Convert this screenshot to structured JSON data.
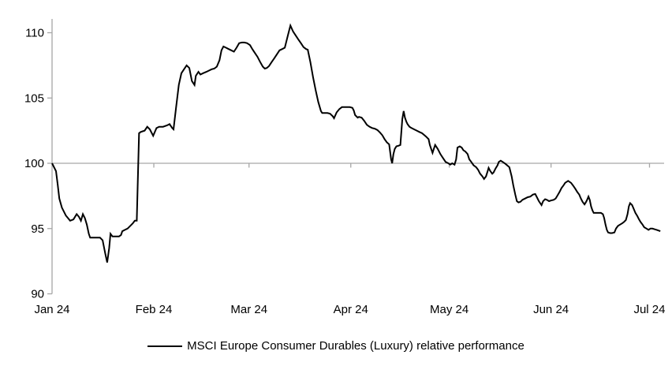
{
  "legend": {
    "label": "MSCI Europe Consumer Durables (Luxury) relative performance"
  },
  "chart_data": {
    "type": "line",
    "title": "",
    "xlabel": "",
    "ylabel": "",
    "grid": "none",
    "legend_position": "bottom",
    "axis_color": "#A6A6A6",
    "text_color": "#000000",
    "baseline_value": 100,
    "y_axis": {
      "ticks": [
        90,
        95,
        100,
        105,
        110
      ],
      "range": [
        90,
        110
      ]
    },
    "x_axis": {
      "tick_labels": [
        "Jan 24",
        "Feb 24",
        "Mar 24",
        "Apr 24",
        "May 24",
        "Jun 24",
        "Jul 24"
      ],
      "tick_positions_days": [
        0,
        31,
        60,
        91,
        121,
        152,
        182
      ],
      "domain_days": [
        0,
        186.4
      ],
      "unit": "days since Jan 1, 2024"
    },
    "series": [
      {
        "name": "MSCI Europe Consumer Durables (Luxury) relative performance",
        "color": "#000000",
        "points": [
          [
            0,
            100
          ],
          [
            1.2,
            99.4
          ],
          [
            1.7,
            98.4
          ],
          [
            2.2,
            97.3
          ],
          [
            3,
            96.6
          ],
          [
            4.2,
            96
          ],
          [
            5.5,
            95.6
          ],
          [
            6.5,
            95.7
          ],
          [
            7.5,
            96.1
          ],
          [
            8.2,
            95.9
          ],
          [
            8.8,
            95.6
          ],
          [
            9.4,
            96.1
          ],
          [
            10,
            95.8
          ],
          [
            10.6,
            95.3
          ],
          [
            11.2,
            94.6
          ],
          [
            11.6,
            94.3
          ],
          [
            13.6,
            94.3
          ],
          [
            14.6,
            94.3
          ],
          [
            15.4,
            94.1
          ],
          [
            16.2,
            93.1
          ],
          [
            16.8,
            92.4
          ],
          [
            17.4,
            93.5
          ],
          [
            17.8,
            94.6
          ],
          [
            18.4,
            94.4
          ],
          [
            19.4,
            94.4
          ],
          [
            20.4,
            94.4
          ],
          [
            21,
            94.5
          ],
          [
            21.4,
            94.8
          ],
          [
            22.2,
            94.9
          ],
          [
            23,
            95
          ],
          [
            23.8,
            95.2
          ],
          [
            24.6,
            95.4
          ],
          [
            25.2,
            95.6
          ],
          [
            25.8,
            95.6
          ],
          [
            26.5,
            102.3
          ],
          [
            27,
            102.4
          ],
          [
            28.2,
            102.5
          ],
          [
            29,
            102.8
          ],
          [
            29.8,
            102.6
          ],
          [
            30.8,
            102.1
          ],
          [
            31.8,
            102.7
          ],
          [
            32.6,
            102.8
          ],
          [
            33.8,
            102.8
          ],
          [
            35,
            102.9
          ],
          [
            35.8,
            103
          ],
          [
            36.6,
            102.7
          ],
          [
            37,
            102.6
          ],
          [
            37.8,
            104.3
          ],
          [
            38.6,
            106
          ],
          [
            39.4,
            106.9
          ],
          [
            40.2,
            107.2
          ],
          [
            41,
            107.5
          ],
          [
            41.8,
            107.3
          ],
          [
            42.6,
            106.3
          ],
          [
            43.4,
            106
          ],
          [
            43.8,
            106.7
          ],
          [
            44.6,
            107
          ],
          [
            45.2,
            106.8
          ],
          [
            46,
            106.9
          ],
          [
            47,
            107
          ],
          [
            47.8,
            107.1
          ],
          [
            48.6,
            107.2
          ],
          [
            49.4,
            107.25
          ],
          [
            50.2,
            107.4
          ],
          [
            51,
            107.9
          ],
          [
            51.6,
            108.65
          ],
          [
            52.2,
            108.95
          ],
          [
            53,
            108.85
          ],
          [
            53.8,
            108.75
          ],
          [
            54.6,
            108.65
          ],
          [
            55.4,
            108.55
          ],
          [
            56.2,
            108.85
          ],
          [
            57,
            109.2
          ],
          [
            57.8,
            109.25
          ],
          [
            58.6,
            109.25
          ],
          [
            59.4,
            109.2
          ],
          [
            60.3,
            109.05
          ],
          [
            61,
            108.75
          ],
          [
            61.8,
            108.45
          ],
          [
            62.6,
            108.15
          ],
          [
            63.4,
            107.75
          ],
          [
            64.2,
            107.4
          ],
          [
            64.8,
            107.25
          ],
          [
            65.4,
            107.3
          ],
          [
            66.1,
            107.45
          ],
          [
            66.9,
            107.75
          ],
          [
            67.7,
            108.05
          ],
          [
            68.5,
            108.35
          ],
          [
            69.3,
            108.65
          ],
          [
            70.1,
            108.75
          ],
          [
            70.9,
            108.85
          ],
          [
            71.8,
            109.75
          ],
          [
            72.6,
            110.55
          ],
          [
            73.4,
            110.1
          ],
          [
            74.2,
            109.8
          ],
          [
            75,
            109.5
          ],
          [
            75.8,
            109.2
          ],
          [
            76.6,
            108.9
          ],
          [
            77.4,
            108.75
          ],
          [
            77.9,
            108.7
          ],
          [
            78.7,
            107.75
          ],
          [
            79.5,
            106.6
          ],
          [
            80.3,
            105.6
          ],
          [
            81.1,
            104.7
          ],
          [
            81.9,
            104
          ],
          [
            82.3,
            103.85
          ],
          [
            83.9,
            103.85
          ],
          [
            84.7,
            103.8
          ],
          [
            85.5,
            103.6
          ],
          [
            85.9,
            103.45
          ],
          [
            86.7,
            103.9
          ],
          [
            87.5,
            104.15
          ],
          [
            88.3,
            104.3
          ],
          [
            89.9,
            104.3
          ],
          [
            90.7,
            104.3
          ],
          [
            91.5,
            104.25
          ],
          [
            91.9,
            104.05
          ],
          [
            92.3,
            103.7
          ],
          [
            93.1,
            103.5
          ],
          [
            93.5,
            103.55
          ],
          [
            94.3,
            103.5
          ],
          [
            95.1,
            103.25
          ],
          [
            95.9,
            102.95
          ],
          [
            96.7,
            102.8
          ],
          [
            97.5,
            102.7
          ],
          [
            98.3,
            102.65
          ],
          [
            99.1,
            102.55
          ],
          [
            99.9,
            102.35
          ],
          [
            100.6,
            102.15
          ],
          [
            101.3,
            101.85
          ],
          [
            102,
            101.6
          ],
          [
            102.7,
            101.45
          ],
          [
            103.3,
            100.3
          ],
          [
            103.6,
            100
          ],
          [
            104,
            100.7
          ],
          [
            104.4,
            101.1
          ],
          [
            104.9,
            101.3
          ],
          [
            105.6,
            101.35
          ],
          [
            106.1,
            101.4
          ],
          [
            106.7,
            103.4
          ],
          [
            107.1,
            104
          ],
          [
            107.5,
            103.5
          ],
          [
            107.9,
            103.2
          ],
          [
            108.3,
            103
          ],
          [
            108.9,
            102.8
          ],
          [
            109.5,
            102.7
          ],
          [
            110.3,
            102.6
          ],
          [
            111.1,
            102.5
          ],
          [
            111.9,
            102.4
          ],
          [
            112.7,
            102.3
          ],
          [
            113.9,
            102.05
          ],
          [
            114.7,
            101.85
          ],
          [
            115.1,
            101.4
          ],
          [
            115.9,
            100.8
          ],
          [
            116.3,
            101.1
          ],
          [
            116.7,
            101.4
          ],
          [
            117.5,
            101.1
          ],
          [
            118.3,
            100.7
          ],
          [
            119.1,
            100.4
          ],
          [
            119.9,
            100.1
          ],
          [
            120.7,
            100
          ],
          [
            121.3,
            99.9
          ],
          [
            121.9,
            100
          ],
          [
            122.6,
            99.9
          ],
          [
            123.1,
            100.3
          ],
          [
            123.5,
            101.2
          ],
          [
            124.2,
            101.3
          ],
          [
            124.8,
            101.2
          ],
          [
            125.3,
            101
          ],
          [
            125.9,
            100.9
          ],
          [
            126.6,
            100.7
          ],
          [
            127.1,
            100.3
          ],
          [
            127.7,
            100.1
          ],
          [
            128.4,
            99.85
          ],
          [
            129.2,
            99.7
          ],
          [
            129.8,
            99.5
          ],
          [
            130.4,
            99.2
          ],
          [
            131.1,
            99
          ],
          [
            131.6,
            98.8
          ],
          [
            132.2,
            99
          ],
          [
            132.7,
            99.4
          ],
          [
            133,
            99.65
          ],
          [
            133.5,
            99.4
          ],
          [
            134.1,
            99.2
          ],
          [
            134.5,
            99.3
          ],
          [
            135.1,
            99.6
          ],
          [
            135.7,
            99.85
          ],
          [
            136.1,
            100.1
          ],
          [
            136.7,
            100.2
          ],
          [
            137.3,
            100.1
          ],
          [
            137.9,
            100
          ],
          [
            138.4,
            99.9
          ],
          [
            139.3,
            99.7
          ],
          [
            140,
            99
          ],
          [
            140.5,
            98.3
          ],
          [
            141.1,
            97.6
          ],
          [
            141.6,
            97.1
          ],
          [
            142.1,
            97
          ],
          [
            142.7,
            97.05
          ],
          [
            143.3,
            97.2
          ],
          [
            144.1,
            97.3
          ],
          [
            144.9,
            97.4
          ],
          [
            145.7,
            97.45
          ],
          [
            146.5,
            97.6
          ],
          [
            147.2,
            97.65
          ],
          [
            147.7,
            97.4
          ],
          [
            148.3,
            97.1
          ],
          [
            149.1,
            96.8
          ],
          [
            149.6,
            97.1
          ],
          [
            150.2,
            97.25
          ],
          [
            150.7,
            97.2
          ],
          [
            151.4,
            97.1
          ],
          [
            152,
            97.15
          ],
          [
            152.8,
            97.2
          ],
          [
            153.4,
            97.3
          ],
          [
            153.9,
            97.5
          ],
          [
            154.6,
            97.8
          ],
          [
            155.2,
            98.1
          ],
          [
            155.8,
            98.3
          ],
          [
            156.3,
            98.5
          ],
          [
            157.2,
            98.65
          ],
          [
            158.1,
            98.5
          ],
          [
            158.7,
            98.3
          ],
          [
            159.4,
            98.05
          ],
          [
            160,
            97.8
          ],
          [
            160.6,
            97.6
          ],
          [
            161.1,
            97.3
          ],
          [
            161.6,
            97.05
          ],
          [
            162.2,
            96.85
          ],
          [
            162.6,
            97
          ],
          [
            163,
            97.2
          ],
          [
            163.4,
            97.45
          ],
          [
            163.8,
            97.2
          ],
          [
            164.2,
            96.7
          ],
          [
            164.6,
            96.4
          ],
          [
            165,
            96.2
          ],
          [
            165.8,
            96.2
          ],
          [
            166.6,
            96.2
          ],
          [
            167.2,
            96.2
          ],
          [
            167.8,
            96.1
          ],
          [
            168.2,
            95.8
          ],
          [
            168.6,
            95.3
          ],
          [
            169,
            94.9
          ],
          [
            169.4,
            94.7
          ],
          [
            170,
            94.65
          ],
          [
            170.6,
            94.65
          ],
          [
            171.3,
            94.7
          ],
          [
            171.8,
            95
          ],
          [
            172.4,
            95.2
          ],
          [
            173,
            95.3
          ],
          [
            173.7,
            95.4
          ],
          [
            174.2,
            95.5
          ],
          [
            174.8,
            95.65
          ],
          [
            175.3,
            96.1
          ],
          [
            175.7,
            96.7
          ],
          [
            176.1,
            96.95
          ],
          [
            176.7,
            96.8
          ],
          [
            177.2,
            96.5
          ],
          [
            177.7,
            96.2
          ],
          [
            178.3,
            95.95
          ],
          [
            178.8,
            95.7
          ],
          [
            179.3,
            95.5
          ],
          [
            179.9,
            95.3
          ],
          [
            180.4,
            95.1
          ],
          [
            181.1,
            95
          ],
          [
            181.7,
            94.9
          ],
          [
            182.3,
            95
          ],
          [
            182.9,
            95
          ],
          [
            183.5,
            94.95
          ],
          [
            184.2,
            94.9
          ],
          [
            185.3,
            94.8
          ]
        ]
      }
    ]
  }
}
